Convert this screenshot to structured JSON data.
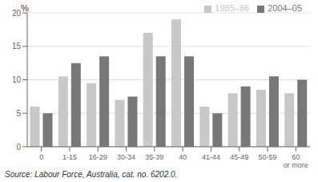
{
  "chart_data": {
    "type": "bar",
    "categories": [
      "0",
      "1-15",
      "16-29",
      "30-34",
      "35-39",
      "40",
      "41-44",
      "45-49",
      "50-59",
      "60\nor more"
    ],
    "series": [
      {
        "name": "1985–86",
        "color": "#c8c8c8",
        "values": [
          6.0,
          10.5,
          9.5,
          7.0,
          17.0,
          19.0,
          6.0,
          8.0,
          8.5,
          8.0
        ]
      },
      {
        "name": "2004–05",
        "color": "#787878",
        "values": [
          5.0,
          12.5,
          13.5,
          7.5,
          13.5,
          13.5,
          5.0,
          9.0,
          10.5,
          10.0
        ]
      }
    ],
    "ylabel": "%",
    "ylim": [
      0,
      20
    ],
    "yticks": [
      0,
      5,
      10,
      15,
      20
    ],
    "grid": true,
    "legend": "upper right",
    "annotations": [
      "Source: Labour Force, Australia, cat. no. 6202.0."
    ]
  }
}
